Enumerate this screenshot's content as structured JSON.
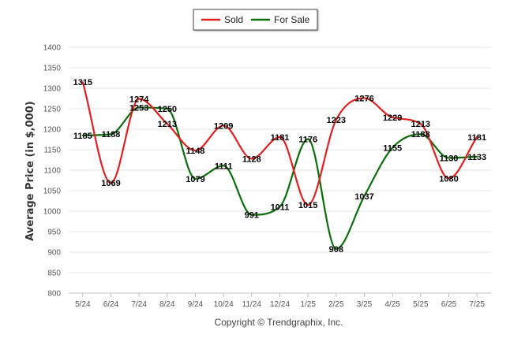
{
  "chart_data": {
    "type": "line",
    "title": "",
    "xlabel": "",
    "ylabel": "Average Price (in $,000)",
    "categories": [
      "5/24",
      "6/24",
      "7/24",
      "8/24",
      "9/24",
      "10/24",
      "11/24",
      "12/24",
      "1/25",
      "2/25",
      "3/25",
      "4/25",
      "5/25",
      "6/25",
      "7/25"
    ],
    "series": [
      {
        "name": "Sold",
        "color": "#e31e1e",
        "values": [
          1315,
          1069,
          1274,
          1213,
          1148,
          1209,
          1128,
          1181,
          1015,
          1223,
          1276,
          1229,
          1213,
          1080,
          1181
        ]
      },
      {
        "name": "For Sale",
        "color": "#0a6e0a",
        "values": [
          1185,
          1188,
          1253,
          1250,
          1079,
          1111,
          991,
          1011,
          1176,
          908,
          1037,
          1155,
          1188,
          1130,
          1133
        ]
      }
    ],
    "ylim": [
      800,
      1400
    ],
    "yticks": [
      800,
      850,
      900,
      950,
      1000,
      1050,
      1100,
      1150,
      1200,
      1250,
      1300,
      1350,
      1400
    ],
    "grid": true,
    "legend_position": "top-center"
  },
  "credit": "Copyright © Trendgraphix, Inc."
}
